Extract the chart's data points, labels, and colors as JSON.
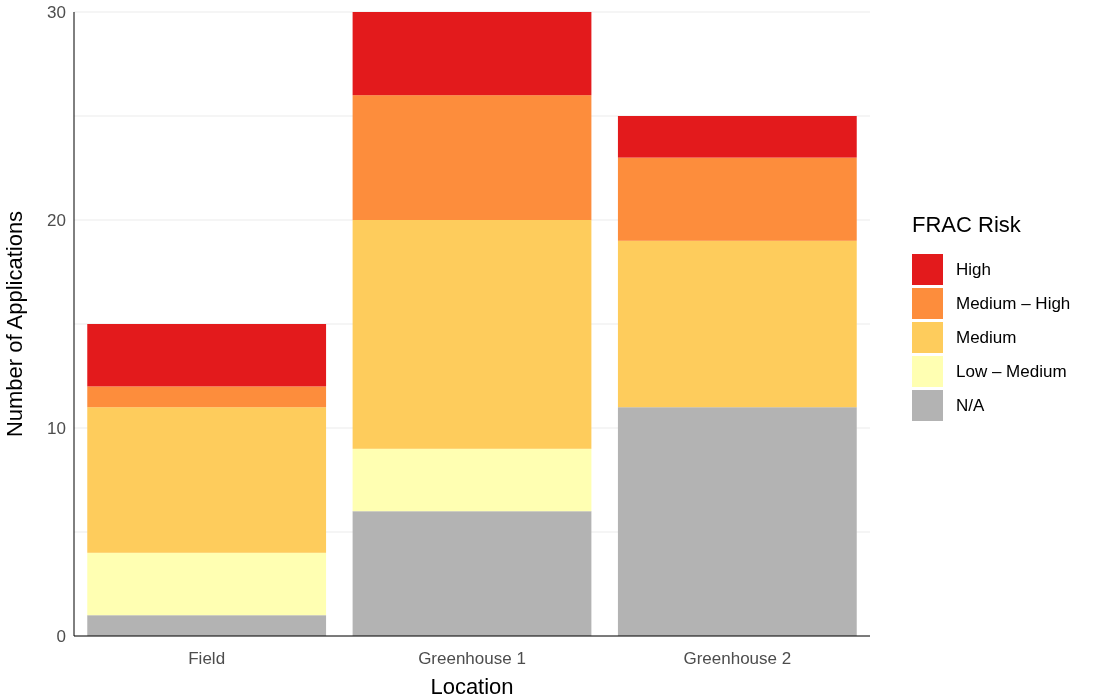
{
  "chart_data": {
    "type": "bar",
    "stacked": true,
    "xlabel": "Location",
    "ylabel": "Number of Applications",
    "legend_title": "FRAC Risk",
    "legend": "right",
    "grid": "y",
    "categories": [
      "Field",
      "Greenhouse 1",
      "Greenhouse 2"
    ],
    "series": [
      {
        "name": "N/A",
        "color": "#b3b3b3",
        "values": [
          1,
          6,
          11
        ]
      },
      {
        "name": "Low – Medium",
        "color": "#ffffb2",
        "values": [
          3,
          3,
          0
        ]
      },
      {
        "name": "Medium",
        "color": "#fecc5c",
        "values": [
          7,
          11,
          8
        ]
      },
      {
        "name": "Medium – High",
        "color": "#fd8d3c",
        "values": [
          1,
          6,
          4
        ]
      },
      {
        "name": "High",
        "color": "#e31a1c",
        "values": [
          3,
          4,
          2
        ]
      }
    ],
    "ylim": [
      0,
      30
    ],
    "yticks": [
      0,
      {
        "value": 5,
        "label": null
      },
      10,
      {
        "value": 15,
        "label": null
      },
      20,
      {
        "value": 25,
        "label": null
      },
      30
    ]
  }
}
